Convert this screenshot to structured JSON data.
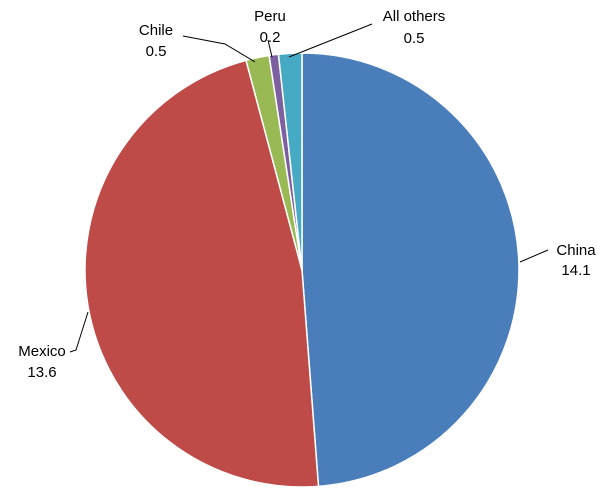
{
  "chart_data": {
    "type": "pie",
    "slices": [
      {
        "label": "China",
        "value": 14.1,
        "value_text": "14.1",
        "color": "#4a7ebb"
      },
      {
        "label": "Mexico",
        "value": 13.6,
        "value_text": "13.6",
        "color": "#be4b48"
      },
      {
        "label": "Chile",
        "value": 0.5,
        "value_text": "0.5",
        "color": "#98b954"
      },
      {
        "label": "Peru",
        "value": 0.2,
        "value_text": "0.2",
        "color": "#7d60a0"
      },
      {
        "label": "All others",
        "value": 0.5,
        "value_text": "0.5",
        "color": "#46aac5"
      }
    ],
    "start_angle": "12 o'clock",
    "direction": "clockwise",
    "legend": "none"
  }
}
